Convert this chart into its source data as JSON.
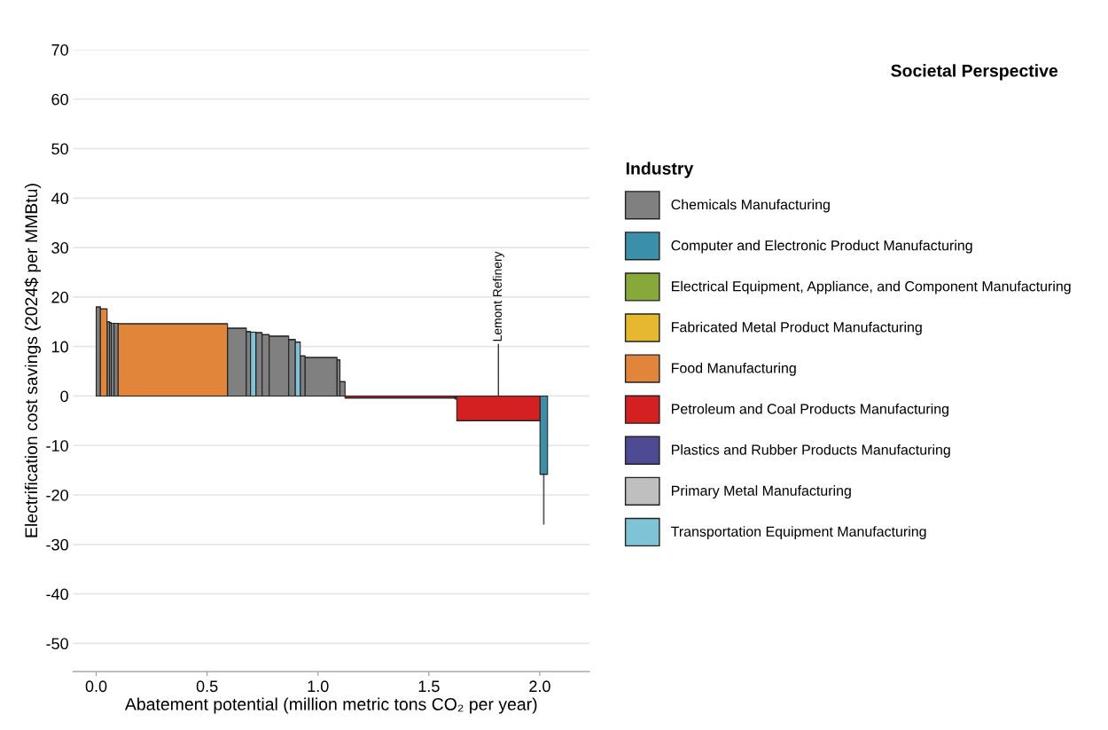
{
  "chart_data": {
    "type": "bar",
    "title": "Societal Perspective",
    "xlabel": "Abatement potential (million metric tons CO₂ per year)",
    "ylabel": "Electrification cost savings (2024$ per MMBtu)",
    "legend_title": "Industry",
    "x": [
      0.0095,
      0.034,
      0.0545,
      0.064,
      0.0745,
      0.09,
      0.3455,
      0.6345,
      0.6865,
      0.708,
      0.734,
      0.764,
      0.824,
      0.883,
      0.909,
      0.931,
      1.014,
      1.0925,
      1.1105,
      1.37,
      1.622,
      1.8135,
      2.018
    ],
    "series": [
      {
        "name": "Chemicals Manufacturing",
        "color": "#808080",
        "values": [
          18,
          null,
          15.0,
          14.8,
          14.7,
          14.7,
          null,
          13.7,
          13.0,
          null,
          12.8,
          12.4,
          12.1,
          11.4,
          null,
          8.1,
          7.8,
          7.3,
          2.9,
          null,
          null,
          null,
          null
        ],
        "xerrors": [
          0.0095,
          null,
          0.0055,
          0.004,
          0.0065,
          0.009,
          null,
          0.0425,
          0.0095,
          null,
          0.014,
          0.016,
          0.044,
          0.015,
          null,
          0.011,
          0.072,
          0.0065,
          0.0115,
          null,
          null,
          null,
          null
        ]
      },
      {
        "name": "Computer and Electronic Product Manufacturing",
        "color": "#3a90a8",
        "values": [
          null,
          null,
          null,
          null,
          null,
          null,
          null,
          null,
          null,
          null,
          null,
          null,
          null,
          null,
          null,
          null,
          null,
          null,
          null,
          null,
          null,
          null,
          -15.8
        ],
        "xerrors": [
          null,
          null,
          null,
          null,
          null,
          null,
          null,
          null,
          null,
          null,
          null,
          null,
          null,
          null,
          null,
          null,
          null,
          null,
          null,
          null,
          null,
          null,
          0.017
        ],
        "errors": [
          null,
          null,
          null,
          null,
          null,
          null,
          null,
          null,
          null,
          null,
          null,
          null,
          null,
          null,
          null,
          null,
          null,
          null,
          null,
          null,
          null,
          null,
          [
            -26.0,
            -15.8
          ]
        ]
      },
      {
        "name": "Electrical Equipment, Appliance, and Component Manufacturing",
        "color": "#86a93a",
        "values": [
          null,
          null,
          null,
          null,
          null,
          null,
          null,
          null,
          null,
          null,
          null,
          null,
          null,
          null,
          null,
          null,
          null,
          null,
          null,
          null,
          null,
          null,
          null
        ]
      },
      {
        "name": "Fabricated Metal Product Manufacturing",
        "color": "#e6b830",
        "values": [
          null,
          null,
          null,
          null,
          null,
          null,
          null,
          null,
          null,
          null,
          null,
          null,
          null,
          null,
          null,
          null,
          null,
          null,
          null,
          null,
          null,
          null,
          null
        ]
      },
      {
        "name": "Food Manufacturing",
        "color": "#e0853a",
        "values": [
          null,
          17.6,
          null,
          null,
          null,
          null,
          14.6,
          null,
          null,
          null,
          null,
          null,
          null,
          null,
          null,
          null,
          null,
          null,
          null,
          null,
          null,
          null,
          null
        ],
        "xerrors": [
          null,
          0.015,
          null,
          null,
          null,
          null,
          0.2465,
          null,
          null,
          null,
          null,
          null,
          null,
          null,
          null,
          null,
          null,
          null,
          null,
          null,
          null,
          null,
          null
        ]
      },
      {
        "name": "Petroleum and Coal Products Manufacturing",
        "color": "#d42020",
        "values": [
          null,
          null,
          null,
          null,
          null,
          null,
          null,
          null,
          null,
          null,
          null,
          null,
          null,
          null,
          null,
          null,
          null,
          null,
          null,
          -0.4,
          null,
          -5.0,
          null
        ],
        "xerrors": [
          null,
          null,
          null,
          null,
          null,
          null,
          null,
          null,
          null,
          null,
          null,
          null,
          null,
          null,
          null,
          null,
          null,
          null,
          null,
          0.248,
          null,
          0.1875,
          null
        ]
      },
      {
        "name": "Plastics and Rubber Products Manufacturing",
        "color": "#4e4b94",
        "values": [
          null,
          null,
          null,
          null,
          null,
          null,
          null,
          null,
          null,
          null,
          null,
          null,
          null,
          null,
          null,
          null,
          null,
          null,
          null,
          null,
          -0.6,
          null,
          null
        ],
        "xerrors": [
          null,
          null,
          null,
          null,
          null,
          null,
          null,
          null,
          null,
          null,
          null,
          null,
          null,
          null,
          null,
          null,
          null,
          null,
          null,
          null,
          0.004,
          null,
          null
        ]
      },
      {
        "name": "Primary Metal Manufacturing",
        "color": "#bfbfbf",
        "values": [
          null,
          null,
          null,
          null,
          null,
          null,
          null,
          null,
          null,
          null,
          null,
          null,
          null,
          null,
          null,
          null,
          null,
          null,
          null,
          null,
          null,
          null,
          null
        ]
      },
      {
        "name": "Transportation Equipment Manufacturing",
        "color": "#7fc4d6",
        "values": [
          null,
          null,
          null,
          null,
          null,
          null,
          null,
          null,
          null,
          12.9,
          null,
          null,
          null,
          null,
          10.9,
          null,
          null,
          null,
          null,
          null,
          null,
          null,
          null
        ],
        "xerrors": [
          null,
          null,
          null,
          null,
          null,
          null,
          null,
          null,
          null,
          0.012,
          null,
          null,
          null,
          null,
          0.011,
          null,
          null,
          null,
          null,
          null,
          null,
          null,
          null
        ]
      }
    ],
    "annotations": [
      {
        "text": "Lemont Refinery",
        "x": 1.8135,
        "y": 0
      }
    ],
    "xlim": [
      -0.104,
      2.224
    ],
    "ylim": [
      -55.7,
      70
    ],
    "xticks": [
      {
        "value": 0,
        "label": "0.0"
      },
      0.5,
      {
        "value": 1,
        "label": "1.0"
      },
      1.5,
      {
        "value": 2,
        "label": "2.0"
      }
    ],
    "yticks": [
      -50,
      -40,
      -30,
      -20,
      -10,
      0,
      10,
      20,
      30,
      40,
      50,
      60,
      70
    ],
    "grid": "y",
    "legend": "right"
  }
}
